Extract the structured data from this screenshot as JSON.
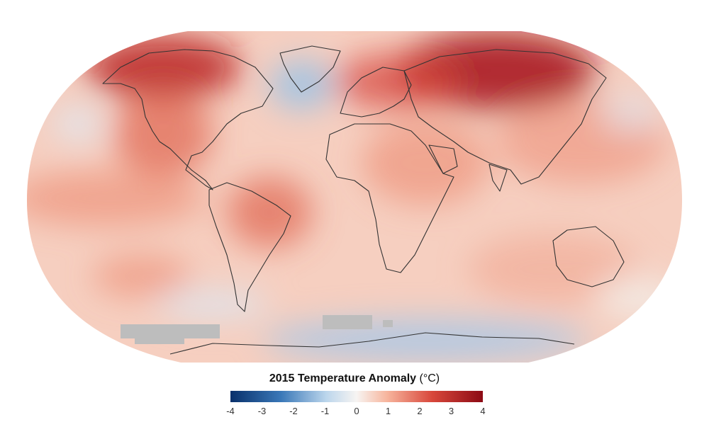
{
  "map": {
    "projection": "Robinson",
    "colors": {
      "strong_warm": "#a50f15",
      "warm": "#e8594a",
      "mild_warm": "#f7b59d",
      "neutral": "#f7f4f2",
      "mild_cool": "#c9dcef",
      "cool": "#5b93c7",
      "strong_cool": "#08306b",
      "no_data": "#bdbdbd",
      "coastline": "#333333"
    }
  },
  "legend": {
    "title_bold": "2015 Temperature Anomaly",
    "title_unit": "(°C)",
    "ticks": [
      "-4",
      "-3",
      "-2",
      "-1",
      "0",
      "1",
      "2",
      "3",
      "4"
    ]
  }
}
